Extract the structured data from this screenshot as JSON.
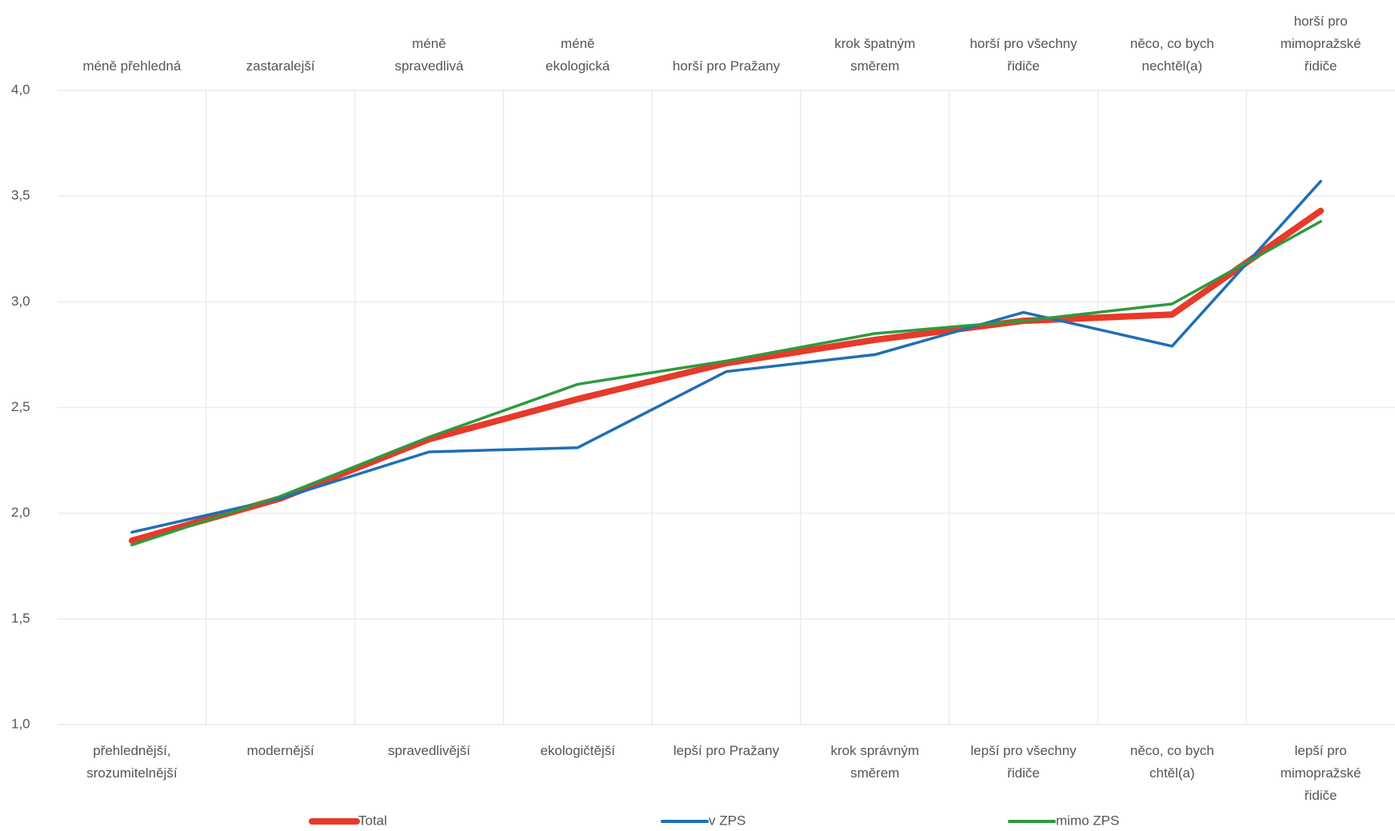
{
  "chart_data": {
    "type": "line",
    "categories": [
      "přehlednější,\nsrozumitelnější",
      "modernější",
      "spravedlivější",
      "ekologičtější",
      "lepší pro Pražany",
      "krok správným\nsměrem",
      "lepší pro všechny\nřidiče",
      "něco, co bych\nchtěl(a)",
      "lepší pro\nmimopražské\nřidiče"
    ],
    "top_labels": [
      "méně přehledná",
      "zastaralejší",
      "méně\nspravedlivá",
      "méně\nekologická",
      "horší pro Pražany",
      "krok špatným\nsměrem",
      "horší pro všechny\nřidiče",
      "něco, co bych\nnechtěl(a)",
      "horší pro\nmimopražské\nřidiče"
    ],
    "series": [
      {
        "name": "Total",
        "color": "#e8392a",
        "values": [
          1.87,
          2.07,
          2.35,
          2.54,
          2.71,
          2.82,
          2.91,
          2.94,
          3.43
        ]
      },
      {
        "name": "v ZPS",
        "color": "#1f6fb5",
        "values": [
          1.91,
          2.07,
          2.29,
          2.31,
          2.67,
          2.75,
          2.95,
          2.79,
          3.57
        ]
      },
      {
        "name": "mimo ZPS",
        "color": "#2e9a3f",
        "values": [
          1.85,
          2.08,
          2.36,
          2.61,
          2.72,
          2.85,
          2.91,
          2.99,
          3.38
        ]
      }
    ],
    "ylim": [
      1,
      4
    ],
    "yticks": [
      {
        "value": 1,
        "label": "1,0"
      },
      {
        "value": 1.5,
        "label": "1,5"
      },
      {
        "value": 2,
        "label": "2,0"
      },
      {
        "value": 2.5,
        "label": "2,5"
      },
      {
        "value": 3,
        "label": "3,0"
      },
      {
        "value": 3.5,
        "label": "3,5"
      },
      {
        "value": 4,
        "label": "4,0"
      }
    ],
    "grid": true,
    "legend": "bottom"
  }
}
